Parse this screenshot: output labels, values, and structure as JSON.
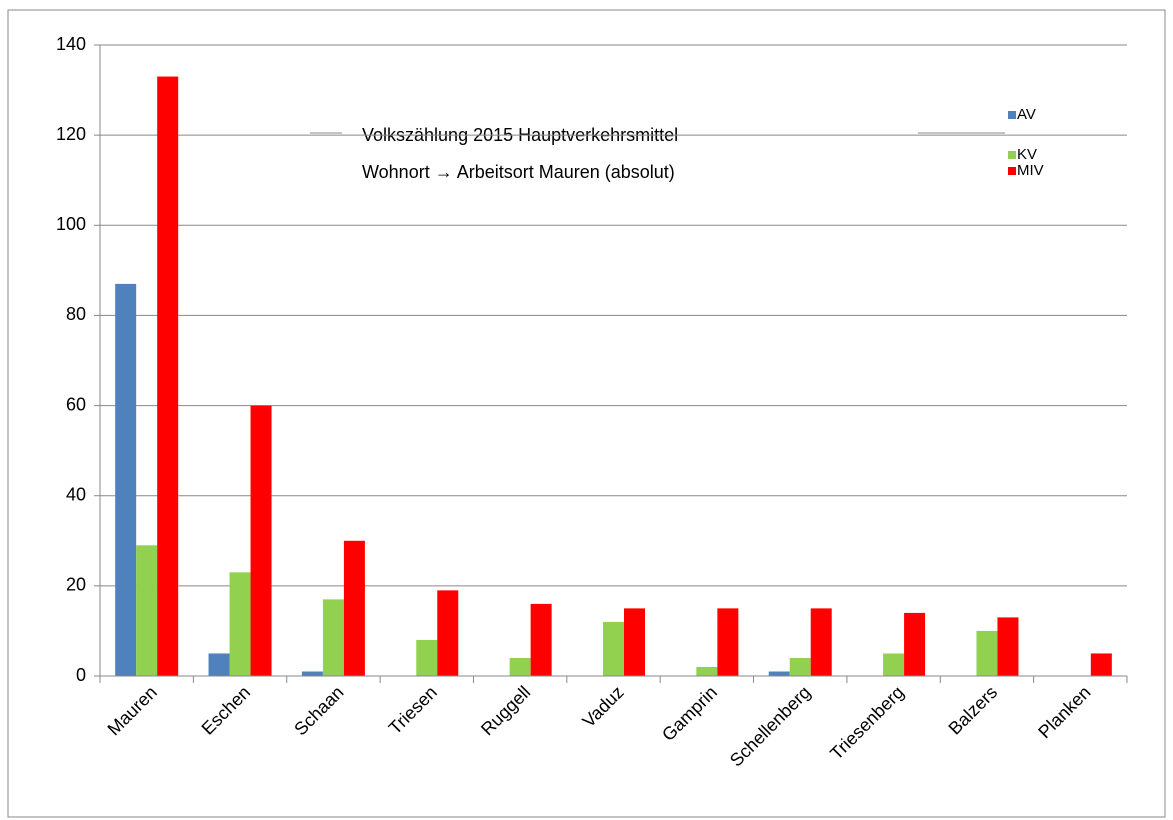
{
  "chart_data": {
    "type": "bar",
    "title": "Volkszählung 2015  Hauptverkehrsmittel",
    "subtitle": "Wohnort → Arbeitsort Mauren (absolut)",
    "categories": [
      "Mauren",
      "Eschen",
      "Schaan",
      "Triesen",
      "Ruggell",
      "Vaduz",
      "Gamprin",
      "Schellenberg",
      "Triesenberg",
      "Balzers",
      "Planken"
    ],
    "series": [
      {
        "name": "AV",
        "color": "#4f81bd",
        "values": [
          87,
          5,
          1,
          0,
          0,
          0,
          0,
          1,
          0,
          0,
          0
        ]
      },
      {
        "name": "KV",
        "color": "#92d050",
        "values": [
          29,
          23,
          17,
          8,
          4,
          12,
          2,
          4,
          5,
          10,
          0
        ]
      },
      {
        "name": "MIV",
        "color": "#ff0000",
        "values": [
          133,
          60,
          30,
          19,
          16,
          15,
          15,
          15,
          14,
          13,
          5
        ]
      }
    ],
    "ylim": [
      0,
      140
    ],
    "yticks": [
      0,
      20,
      40,
      60,
      80,
      100,
      120,
      140
    ],
    "grid": true,
    "legend": "top-right"
  }
}
